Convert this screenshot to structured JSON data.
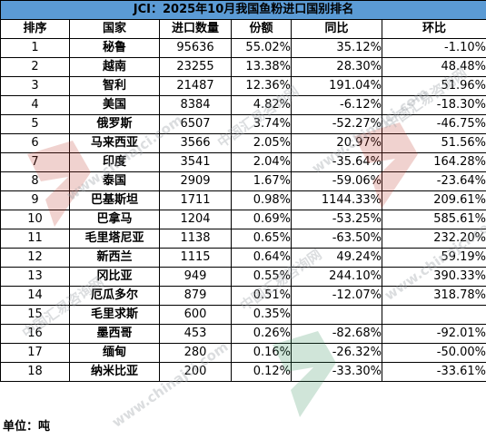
{
  "title": "JCI：2025年10月我国鱼粉进口国别排名",
  "headers": [
    "排序",
    "国家",
    "进口数量",
    "份额",
    "同比",
    "环比"
  ],
  "rows": [
    {
      "rank": "1",
      "country": "秘鲁",
      "qty": "95636",
      "share": "55.02%",
      "yoy": "35.12%",
      "mom": "-1.10%"
    },
    {
      "rank": "2",
      "country": "越南",
      "qty": "23255",
      "share": "13.38%",
      "yoy": "28.30%",
      "mom": "48.48%"
    },
    {
      "rank": "3",
      "country": "智利",
      "qty": "21487",
      "share": "12.36%",
      "yoy": "191.04%",
      "mom": "51.96%"
    },
    {
      "rank": "4",
      "country": "美国",
      "qty": "8384",
      "share": "4.82%",
      "yoy": "-6.12%",
      "mom": "-18.30%"
    },
    {
      "rank": "5",
      "country": "俄罗斯",
      "qty": "6507",
      "share": "3.74%",
      "yoy": "-52.27%",
      "mom": "-46.75%"
    },
    {
      "rank": "6",
      "country": "马来西亚",
      "qty": "3566",
      "share": "2.05%",
      "yoy": "20.97%",
      "mom": "51.56%"
    },
    {
      "rank": "7",
      "country": "印度",
      "qty": "3541",
      "share": "2.04%",
      "yoy": "-35.64%",
      "mom": "164.28%"
    },
    {
      "rank": "8",
      "country": "泰国",
      "qty": "2909",
      "share": "1.67%",
      "yoy": "-59.06%",
      "mom": "-23.64%"
    },
    {
      "rank": "9",
      "country": "巴基斯坦",
      "qty": "1711",
      "share": "0.98%",
      "yoy": "1144.33%",
      "mom": "209.61%"
    },
    {
      "rank": "10",
      "country": "巴拿马",
      "qty": "1204",
      "share": "0.69%",
      "yoy": "-53.25%",
      "mom": "585.61%"
    },
    {
      "rank": "11",
      "country": "毛里塔尼亚",
      "qty": "1138",
      "share": "0.65%",
      "yoy": "-63.50%",
      "mom": "232.20%"
    },
    {
      "rank": "12",
      "country": "新西兰",
      "qty": "1115",
      "share": "0.64%",
      "yoy": "49.24%",
      "mom": "59.19%"
    },
    {
      "rank": "13",
      "country": "冈比亚",
      "qty": "949",
      "share": "0.55%",
      "yoy": "244.10%",
      "mom": "390.33%"
    },
    {
      "rank": "14",
      "country": "厄瓜多尔",
      "qty": "879",
      "share": "0.51%",
      "yoy": "-12.07%",
      "mom": "318.78%"
    },
    {
      "rank": "15",
      "country": "毛里求斯",
      "qty": "600",
      "share": "0.35%",
      "yoy": "",
      "mom": ""
    },
    {
      "rank": "16",
      "country": "墨西哥",
      "qty": "453",
      "share": "0.26%",
      "yoy": "-82.68%",
      "mom": "-92.01%"
    },
    {
      "rank": "17",
      "country": "缅甸",
      "qty": "280",
      "share": "0.16%",
      "yoy": "-26.32%",
      "mom": "-50.00%"
    },
    {
      "rank": "18",
      "country": "纳米比亚",
      "qty": "200",
      "share": "0.12%",
      "yoy": "-33.30%",
      "mom": "-33.61%"
    }
  ],
  "unit_label": "单位：吨",
  "watermarks": [
    "中国汇易咨询网",
    "www.chinajci.com"
  ]
}
